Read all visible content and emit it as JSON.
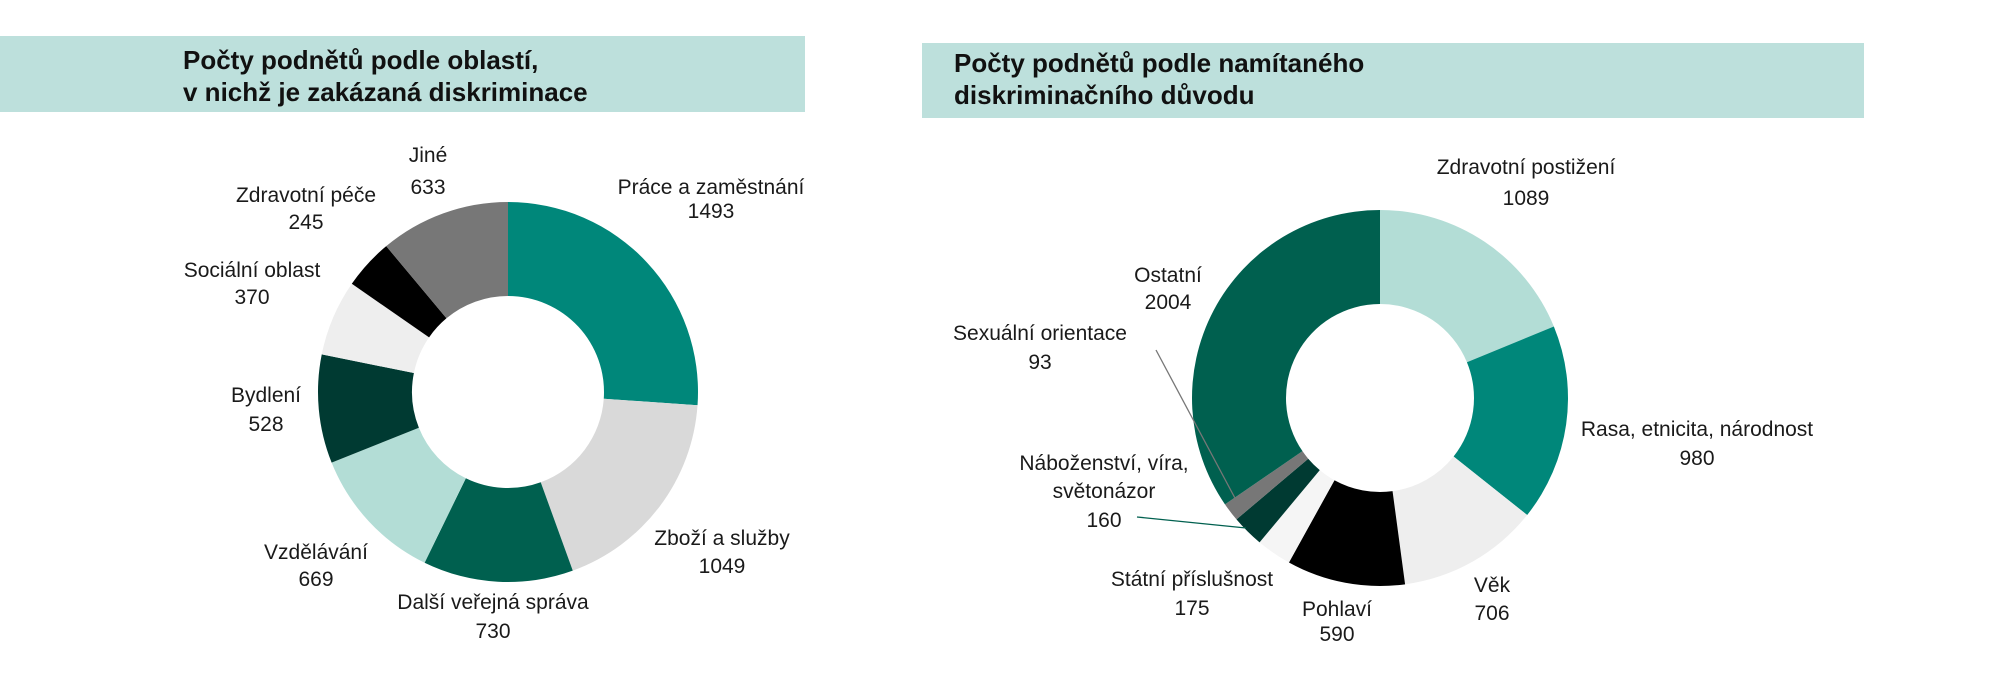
{
  "chart_data": [
    {
      "type": "pie",
      "donut": true,
      "title_lines": [
        "Počty podnětů podle oblastí,",
        "v nichž je zakázaná diskriminace"
      ],
      "categories": [
        "Práce a zaměstnání",
        "Zboží a služby",
        "Další veřejná správa",
        "Vzdělávání",
        "Bydlení",
        "Sociální oblast",
        "Zdravotní péče",
        "Jiné"
      ],
      "values": [
        1493,
        1049,
        730,
        669,
        528,
        370,
        245,
        633
      ],
      "value_labels": [
        "1493",
        "1049",
        "730",
        "669",
        "528",
        "370",
        "245",
        "633"
      ],
      "colors": [
        "#00877a",
        "#d9d9d9",
        "#00604f",
        "#b3ddd6",
        "#003a32",
        "#eeeeee",
        "#000000",
        "#777777"
      ],
      "legend": "none"
    },
    {
      "type": "pie",
      "donut": true,
      "title_lines": [
        "Počty podnětů podle namítaného",
        "diskriminačního důvodu"
      ],
      "categories": [
        "Zdravotní postižení",
        "Rasa, etnicita, národnost",
        "Věk",
        "Pohlaví",
        "Státní příslušnost",
        "Náboženství, víra, světonázor",
        "Sexuální orientace",
        "Ostatní"
      ],
      "label_lines": [
        [
          "Zdravotní postižení"
        ],
        [
          "Rasa, etnicita, národnost"
        ],
        [
          "Věk"
        ],
        [
          "Pohlaví"
        ],
        [
          "Státní příslušnost"
        ],
        [
          "Náboženství, víra,",
          "světonázor"
        ],
        [
          "Sexuální orientace"
        ],
        [
          "Ostatní"
        ]
      ],
      "values": [
        1089,
        980,
        706,
        590,
        175,
        160,
        93,
        2004
      ],
      "value_labels": [
        "1089",
        "980",
        "706",
        "590",
        "175",
        "160",
        "93",
        "2004"
      ],
      "colors": [
        "#b3ddd6",
        "#00877a",
        "#eeeeee",
        "#000000",
        "#f5f5f5",
        "#003a32",
        "#777777",
        "#00604f"
      ],
      "legend": "none"
    }
  ]
}
